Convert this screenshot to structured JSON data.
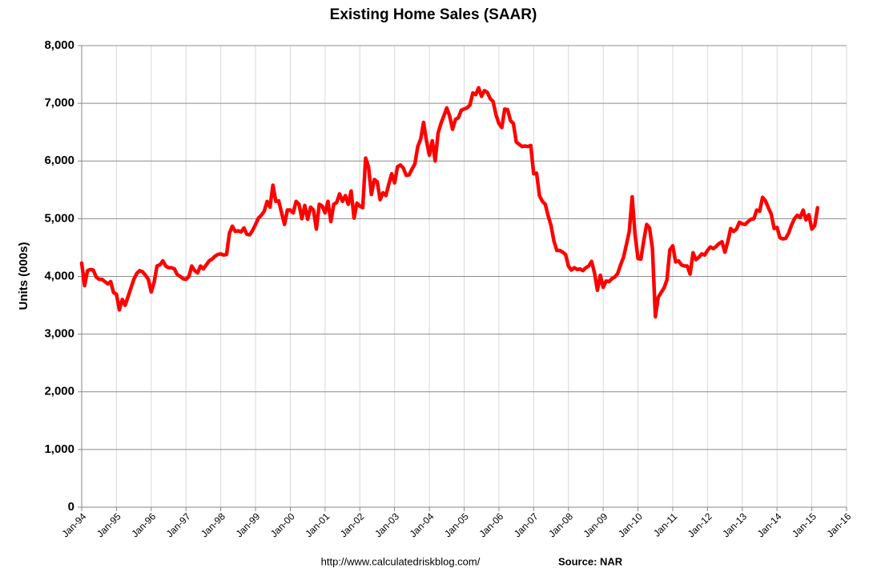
{
  "chart_data": {
    "type": "line",
    "title": "Existing Home Sales (SAAR)",
    "y_label": "Units (000s)",
    "source_url": "http://www.calculatedriskblog.com/",
    "source": "Source: NAR",
    "color": "#ff0000",
    "grid": true,
    "xlim": [
      "1994-01",
      "2016-01"
    ],
    "ylim": [
      0,
      8000
    ],
    "yticks": [
      0,
      {
        "value": 1000,
        "label": "1,000"
      },
      {
        "value": 2000,
        "label": "2,000"
      },
      {
        "value": 3000,
        "label": "3,000"
      },
      {
        "value": 4000,
        "label": "4,000"
      },
      {
        "value": 5000,
        "label": "5,000"
      },
      {
        "value": 6000,
        "label": "6,000"
      },
      {
        "value": 7000,
        "label": "7,000"
      },
      {
        "value": 8000,
        "label": "8,000"
      }
    ],
    "xticks": [
      {
        "value": "1994-01",
        "label": "Jan-94"
      },
      {
        "value": "1995-01",
        "label": "Jan-95"
      },
      {
        "value": "1996-01",
        "label": "Jan-96"
      },
      {
        "value": "1997-01",
        "label": "Jan-97"
      },
      {
        "value": "1998-01",
        "label": "Jan-98"
      },
      {
        "value": "1999-01",
        "label": "Jan-99"
      },
      {
        "value": "2000-01",
        "label": "Jan-00"
      },
      {
        "value": "2001-01",
        "label": "Jan-01"
      },
      {
        "value": "2002-01",
        "label": "Jan-02"
      },
      {
        "value": "2003-01",
        "label": "Jan-03"
      },
      {
        "value": "2004-01",
        "label": "Jan-04"
      },
      {
        "value": "2005-01",
        "label": "Jan-05"
      },
      {
        "value": "2006-01",
        "label": "Jan-06"
      },
      {
        "value": "2007-01",
        "label": "Jan-07"
      },
      {
        "value": "2008-01",
        "label": "Jan-08"
      },
      {
        "value": "2009-01",
        "label": "Jan-09"
      },
      {
        "value": "2010-01",
        "label": "Jan-10"
      },
      {
        "value": "2011-01",
        "label": "Jan-11"
      },
      {
        "value": "2012-01",
        "label": "Jan-12"
      },
      {
        "value": "2013-01",
        "label": "Jan-13"
      },
      {
        "value": "2014-01",
        "label": "Jan-14"
      },
      {
        "value": "2015-01",
        "label": "Jan-15"
      },
      {
        "value": "2016-01",
        "label": "Jan-16"
      }
    ],
    "x": [
      "1994-01",
      "1994-02",
      "1994-03",
      "1994-04",
      "1994-05",
      "1994-06",
      "1994-07",
      "1994-08",
      "1994-09",
      "1994-10",
      "1994-11",
      "1994-12",
      "1995-01",
      "1995-02",
      "1995-03",
      "1995-04",
      "1995-05",
      "1995-06",
      "1995-07",
      "1995-08",
      "1995-09",
      "1995-10",
      "1995-11",
      "1995-12",
      "1996-01",
      "1996-02",
      "1996-03",
      "1996-04",
      "1996-05",
      "1996-06",
      "1996-07",
      "1996-08",
      "1996-09",
      "1996-10",
      "1996-11",
      "1996-12",
      "1997-01",
      "1997-02",
      "1997-03",
      "1997-04",
      "1997-05",
      "1997-06",
      "1997-07",
      "1997-08",
      "1997-09",
      "1997-10",
      "1997-11",
      "1997-12",
      "1998-01",
      "1998-02",
      "1998-03",
      "1998-04",
      "1998-05",
      "1998-06",
      "1998-07",
      "1998-08",
      "1998-09",
      "1998-10",
      "1998-11",
      "1998-12",
      "1999-01",
      "1999-02",
      "1999-03",
      "1999-04",
      "1999-05",
      "1999-06",
      "1999-07",
      "1999-08",
      "1999-09",
      "1999-10",
      "1999-11",
      "1999-12",
      "2000-01",
      "2000-02",
      "2000-03",
      "2000-04",
      "2000-05",
      "2000-06",
      "2000-07",
      "2000-08",
      "2000-09",
      "2000-10",
      "2000-11",
      "2000-12",
      "2001-01",
      "2001-02",
      "2001-03",
      "2001-04",
      "2001-05",
      "2001-06",
      "2001-07",
      "2001-08",
      "2001-09",
      "2001-10",
      "2001-11",
      "2001-12",
      "2002-01",
      "2002-02",
      "2002-03",
      "2002-04",
      "2002-05",
      "2002-06",
      "2002-07",
      "2002-08",
      "2002-09",
      "2002-10",
      "2002-11",
      "2002-12",
      "2003-01",
      "2003-02",
      "2003-03",
      "2003-04",
      "2003-05",
      "2003-06",
      "2003-07",
      "2003-08",
      "2003-09",
      "2003-10",
      "2003-11",
      "2003-12",
      "2004-01",
      "2004-02",
      "2004-03",
      "2004-04",
      "2004-05",
      "2004-06",
      "2004-07",
      "2004-08",
      "2004-09",
      "2004-10",
      "2004-11",
      "2004-12",
      "2005-01",
      "2005-02",
      "2005-03",
      "2005-04",
      "2005-05",
      "2005-06",
      "2005-07",
      "2005-08",
      "2005-09",
      "2005-10",
      "2005-11",
      "2005-12",
      "2006-01",
      "2006-02",
      "2006-03",
      "2006-04",
      "2006-05",
      "2006-06",
      "2006-07",
      "2006-08",
      "2006-09",
      "2006-10",
      "2006-11",
      "2006-12",
      "2007-01",
      "2007-02",
      "2007-03",
      "2007-04",
      "2007-05",
      "2007-06",
      "2007-07",
      "2007-08",
      "2007-09",
      "2007-10",
      "2007-11",
      "2007-12",
      "2008-01",
      "2008-02",
      "2008-03",
      "2008-04",
      "2008-05",
      "2008-06",
      "2008-07",
      "2008-08",
      "2008-09",
      "2008-10",
      "2008-11",
      "2008-12",
      "2009-01",
      "2009-02",
      "2009-03",
      "2009-04",
      "2009-05",
      "2009-06",
      "2009-07",
      "2009-08",
      "2009-09",
      "2009-10",
      "2009-11",
      "2009-12",
      "2010-01",
      "2010-02",
      "2010-03",
      "2010-04",
      "2010-05",
      "2010-06",
      "2010-07",
      "2010-08",
      "2010-09",
      "2010-10",
      "2010-11",
      "2010-12",
      "2011-01",
      "2011-02",
      "2011-03",
      "2011-04",
      "2011-05",
      "2011-06",
      "2011-07",
      "2011-08",
      "2011-09",
      "2011-10",
      "2011-11",
      "2011-12",
      "2012-01",
      "2012-02",
      "2012-03",
      "2012-04",
      "2012-05",
      "2012-06",
      "2012-07",
      "2012-08",
      "2012-09",
      "2012-10",
      "2012-11",
      "2012-12",
      "2013-01",
      "2013-02",
      "2013-03",
      "2013-04",
      "2013-05",
      "2013-06",
      "2013-07",
      "2013-08",
      "2013-09",
      "2013-10",
      "2013-11",
      "2013-12",
      "2014-01",
      "2014-02",
      "2014-03",
      "2014-04",
      "2014-05",
      "2014-06",
      "2014-07",
      "2014-08",
      "2014-09",
      "2014-10",
      "2014-11",
      "2014-12",
      "2015-01",
      "2015-02",
      "2015-03"
    ],
    "values": [
      4230,
      3840,
      4100,
      4120,
      4110,
      3990,
      3950,
      3950,
      3910,
      3870,
      3910,
      3720,
      3690,
      3420,
      3600,
      3500,
      3650,
      3800,
      3950,
      4050,
      4100,
      4080,
      4020,
      3950,
      3730,
      3900,
      4180,
      4200,
      4270,
      4180,
      4150,
      4150,
      4130,
      4030,
      4000,
      3960,
      3950,
      4000,
      4180,
      4100,
      4060,
      4180,
      4130,
      4200,
      4270,
      4300,
      4350,
      4380,
      4390,
      4370,
      4380,
      4750,
      4870,
      4780,
      4790,
      4770,
      4840,
      4730,
      4720,
      4800,
      4900,
      5010,
      5060,
      5130,
      5300,
      5200,
      5580,
      5300,
      5310,
      5100,
      4900,
      5150,
      5150,
      5100,
      5300,
      5250,
      5000,
      5230,
      4990,
      5200,
      5150,
      4820,
      5250,
      5220,
      5100,
      5300,
      4950,
      5250,
      5280,
      5430,
      5300,
      5400,
      5250,
      5480,
      5010,
      5270,
      5220,
      5190,
      6050,
      5900,
      5420,
      5680,
      5640,
      5330,
      5450,
      5400,
      5600,
      5780,
      5620,
      5900,
      5930,
      5880,
      5750,
      5760,
      5860,
      5950,
      6250,
      6380,
      6670,
      6350,
      6100,
      6350,
      6000,
      6480,
      6650,
      6780,
      6920,
      6780,
      6550,
      6720,
      6750,
      6880,
      6900,
      6920,
      6970,
      7180,
      7150,
      7270,
      7120,
      7220,
      7190,
      7080,
      7030,
      6800,
      6650,
      6580,
      6900,
      6890,
      6700,
      6650,
      6330,
      6290,
      6250,
      6260,
      6250,
      6270,
      5780,
      5790,
      5400,
      5300,
      5250,
      5050,
      4880,
      4610,
      4450,
      4450,
      4420,
      4380,
      4180,
      4110,
      4150,
      4120,
      4130,
      4100,
      4150,
      4180,
      4260,
      4060,
      3760,
      4020,
      3810,
      3920,
      3910,
      3960,
      3990,
      4050,
      4200,
      4330,
      4550,
      4780,
      5380,
      4720,
      4310,
      4300,
      4620,
      4900,
      4840,
      4480,
      3300,
      3640,
      3720,
      3800,
      3940,
      4460,
      4530,
      4250,
      4270,
      4200,
      4180,
      4180,
      4040,
      4410,
      4290,
      4330,
      4390,
      4370,
      4450,
      4510,
      4480,
      4520,
      4570,
      4600,
      4420,
      4600,
      4830,
      4780,
      4820,
      4940,
      4910,
      4900,
      4950,
      4990,
      5000,
      5150,
      5130,
      5370,
      5310,
      5190,
      5080,
      4830,
      4850,
      4670,
      4650,
      4660,
      4750,
      4890,
      5000,
      5060,
      5020,
      5150,
      4980,
      5070,
      4820,
      4880,
      5190
    ]
  }
}
